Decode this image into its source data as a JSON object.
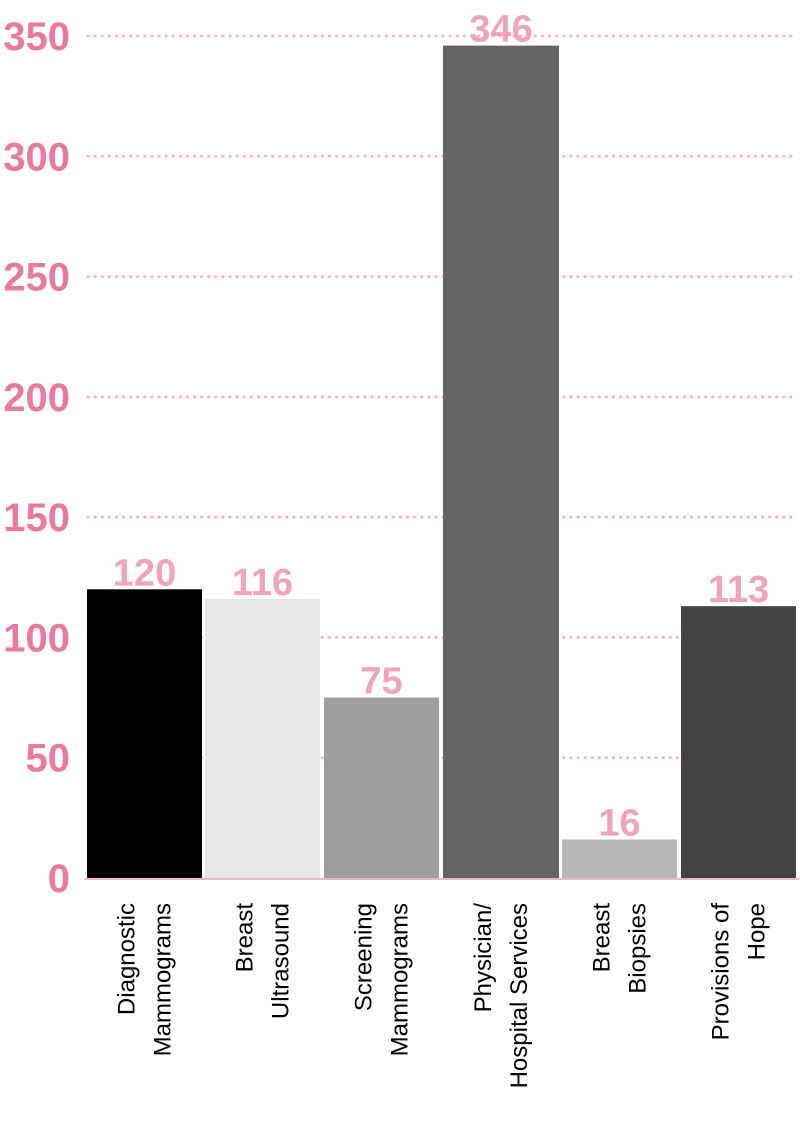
{
  "chart_data": {
    "type": "bar",
    "categories": [
      [
        "Diagnostic",
        "Mammograms"
      ],
      [
        "Breast",
        "Ultrasound"
      ],
      [
        "Screening",
        "Mammograms"
      ],
      [
        "Physician/",
        "Hospital Services"
      ],
      [
        "Breast",
        "Biopsies"
      ],
      [
        "Provisions of",
        "Hope"
      ]
    ],
    "values": [
      120,
      116,
      75,
      346,
      16,
      113
    ],
    "bar_colors": [
      "#000000",
      "#e6e6e6",
      "#9d9ea0",
      "#636466",
      "#b5b6b8",
      "#444446"
    ],
    "ylim": [
      0,
      350
    ],
    "yticks": [
      0,
      50,
      100,
      150,
      200,
      250,
      300,
      350
    ],
    "title": "",
    "xlabel": "",
    "ylabel": "",
    "grid": true,
    "grid_style": "dotted",
    "data_labels": true
  },
  "colors": {
    "accent": "#e9799f",
    "value_label": "#f0a3bf",
    "grid": "#f3b3c8",
    "axis": "#f3b3c8",
    "category_label": "#000000"
  }
}
